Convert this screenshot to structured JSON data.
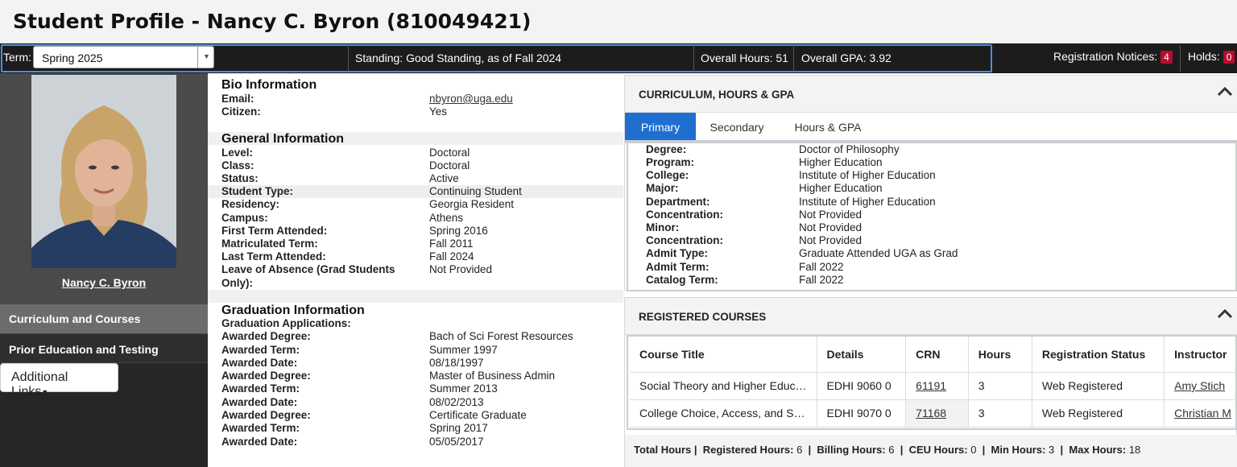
{
  "page_title": "Student Profile - Nancy C. Byron (810049421)",
  "info_bar": {
    "term_label": "Term:",
    "term_value": "Spring 2025",
    "standing_label": "Standing:",
    "standing_value": "Good Standing, as of Fall 2024",
    "overall_hours_label": "Overall Hours:",
    "overall_hours_value": "51",
    "overall_gpa_label": "Overall GPA:",
    "overall_gpa_value": "3.92",
    "registration_notices_label": "Registration Notices:",
    "registration_notices_count": "4",
    "holds_label": "Holds:",
    "holds_count": "0"
  },
  "sidebar": {
    "student_name": "Nancy C. Byron",
    "nav": [
      "Curriculum and Courses",
      "Prior Education and Testing"
    ],
    "additional_links": "Additional Links"
  },
  "bio": {
    "heading": "Bio Information",
    "rows": [
      {
        "label": "Email:",
        "value": "nbyron@uga.edu"
      },
      {
        "label": "Citizen:",
        "value": "Yes"
      }
    ]
  },
  "general": {
    "heading": "General Information",
    "rows": [
      {
        "label": "Level:",
        "value": "Doctoral"
      },
      {
        "label": "Class:",
        "value": "Doctoral"
      },
      {
        "label": "Status:",
        "value": "Active"
      },
      {
        "label": "Student Type:",
        "value": "Continuing Student"
      },
      {
        "label": "Residency:",
        "value": "Georgia Resident"
      },
      {
        "label": "Campus:",
        "value": "Athens"
      },
      {
        "label": "First Term Attended:",
        "value": "Spring 2016"
      },
      {
        "label": "Matriculated Term:",
        "value": "Fall 2011"
      },
      {
        "label": "Last Term Attended:",
        "value": "Fall 2024"
      },
      {
        "label": "Leave of Absence (Grad Students",
        "value": "Not Provided"
      },
      {
        "label": "Only):",
        "value": ""
      }
    ]
  },
  "graduation": {
    "heading": "Graduation Information",
    "rows": [
      {
        "label": "Graduation Applications:",
        "value": ""
      },
      {
        "label": "Awarded Degree:",
        "value": "Bach of Sci Forest Resources"
      },
      {
        "label": "Awarded Term:",
        "value": "Summer 1997"
      },
      {
        "label": "Awarded Date:",
        "value": "08/18/1997"
      },
      {
        "label": "Awarded Degree:",
        "value": "Master of Business Admin"
      },
      {
        "label": "Awarded Term:",
        "value": "Summer 2013"
      },
      {
        "label": "Awarded Date:",
        "value": "08/02/2013"
      },
      {
        "label": "Awarded Degree:",
        "value": "Certificate Graduate"
      },
      {
        "label": "Awarded Term:",
        "value": "Spring 2017"
      },
      {
        "label": "Awarded Date:",
        "value": "05/05/2017"
      }
    ]
  },
  "curriculum": {
    "title": "CURRICULUM, HOURS & GPA",
    "tabs": [
      "Primary",
      "Secondary",
      "Hours & GPA"
    ],
    "rows": [
      {
        "label": "Degree:",
        "value": "Doctor of Philosophy"
      },
      {
        "label": "Program:",
        "value": "Higher Education"
      },
      {
        "label": "College:",
        "value": "Institute of Higher Education"
      },
      {
        "label": "Major:",
        "value": "Higher Education"
      },
      {
        "label": "Department:",
        "value": "Institute of Higher Education"
      },
      {
        "label": "Concentration:",
        "value": "Not Provided"
      },
      {
        "label": "Minor:",
        "value": "Not Provided"
      },
      {
        "label": "Concentration:",
        "value": "Not Provided"
      },
      {
        "label": "Admit Type:",
        "value": "Graduate Attended UGA as Grad"
      },
      {
        "label": "Admit Term:",
        "value": "Fall 2022"
      },
      {
        "label": "Catalog Term:",
        "value": "Fall 2022"
      }
    ]
  },
  "registered": {
    "title": "REGISTERED COURSES",
    "columns": [
      "Course Title",
      "Details",
      "CRN",
      "Hours",
      "Registration Status",
      "Instructor"
    ],
    "rows": [
      [
        "Social Theory and Higher Educ…",
        "EDHI 9060 0",
        "61191",
        "3",
        "Web Registered",
        "Amy Stich"
      ],
      [
        "College Choice, Access, and S…",
        "EDHI 9070 0",
        "71168",
        "3",
        "Web Registered",
        "Christian M"
      ]
    ],
    "totals": {
      "total_hours_label": "Total Hours |",
      "registered_label": "Registered Hours:",
      "registered_value": "6",
      "billing_label": "Billing Hours:",
      "billing_value": "6",
      "ceu_label": "CEU Hours:",
      "ceu_value": "0",
      "min_label": "Min Hours:",
      "min_value": "3",
      "max_label": "Max Hours:",
      "max_value": "18"
    }
  },
  "colors": {
    "accent_blue": "#1f6fd1",
    "badge_red": "#ba0c2f",
    "dark_bar": "#1c1c1c"
  }
}
